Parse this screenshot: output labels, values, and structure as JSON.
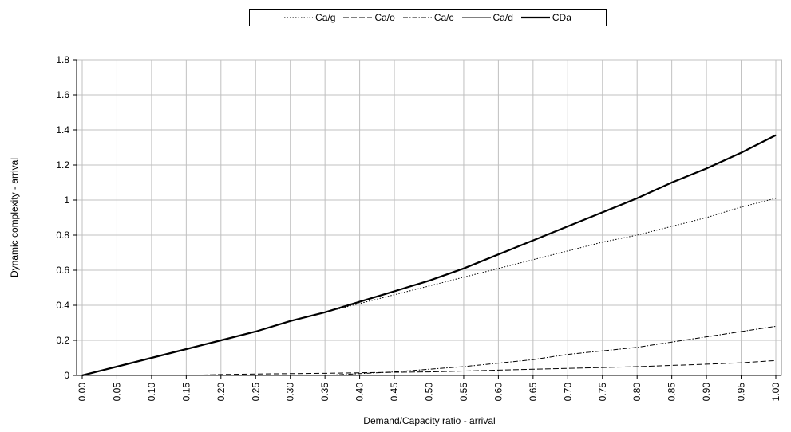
{
  "chart_data": {
    "type": "line",
    "xlabel": "Demand/Capacity ratio - arrival",
    "ylabel": "Dynamic complexity - arrival",
    "x": [
      0.0,
      0.05,
      0.1,
      0.15,
      0.2,
      0.25,
      0.3,
      0.35,
      0.4,
      0.45,
      0.5,
      0.55,
      0.6,
      0.65,
      0.7,
      0.75,
      0.8,
      0.85,
      0.9,
      0.95,
      1.0
    ],
    "x_tick_labels": [
      "0.00",
      "0.05",
      "0.10",
      "0.15",
      "0.20",
      "0.25",
      "0.30",
      "0.35",
      "0.40",
      "0.45",
      "0.50",
      "0.55",
      "0.60",
      "0.65",
      "0.70",
      "0.75",
      "0.80",
      "0.85",
      "0.90",
      "0.95",
      "1.00"
    ],
    "y_tick_labels": [
      "0",
      "0.2",
      "0.4",
      "0.6",
      "0.8",
      "1",
      "1.2",
      "1.4",
      "1.6",
      "1.8"
    ],
    "ylim": [
      0,
      1.8
    ],
    "grid": true,
    "legend_position": "top",
    "series": [
      {
        "name": "Ca/g",
        "style": "dotted",
        "values": [
          0,
          0.05,
          0.1,
          0.15,
          0.2,
          0.25,
          0.31,
          0.36,
          0.41,
          0.46,
          0.51,
          0.56,
          0.61,
          0.66,
          0.71,
          0.76,
          0.8,
          0.85,
          0.9,
          0.96,
          1.01
        ]
      },
      {
        "name": "Ca/o",
        "style": "dashed",
        "values": [
          0,
          0,
          0,
          0,
          0.005,
          0.008,
          0.01,
          0.012,
          0.015,
          0.018,
          0.02,
          0.025,
          0.03,
          0.035,
          0.04,
          0.045,
          0.05,
          0.057,
          0.064,
          0.072,
          0.085
        ]
      },
      {
        "name": "Ca/c",
        "style": "dashdot",
        "values": [
          0,
          0,
          0,
          0,
          0,
          0,
          0,
          0,
          0.01,
          0.02,
          0.035,
          0.05,
          0.07,
          0.09,
          0.12,
          0.14,
          0.16,
          0.19,
          0.22,
          0.25,
          0.28
        ]
      },
      {
        "name": "Ca/d",
        "style": "thin",
        "values": [
          0,
          0,
          0,
          0,
          0,
          0,
          0,
          0,
          0,
          0,
          0,
          0,
          0,
          0,
          0,
          0,
          0,
          0,
          0,
          0,
          0
        ]
      },
      {
        "name": "CDa",
        "style": "thick",
        "values": [
          0,
          0.05,
          0.1,
          0.15,
          0.2,
          0.25,
          0.31,
          0.36,
          0.42,
          0.48,
          0.54,
          0.61,
          0.69,
          0.77,
          0.85,
          0.93,
          1.01,
          1.1,
          1.18,
          1.27,
          1.37
        ]
      }
    ]
  }
}
